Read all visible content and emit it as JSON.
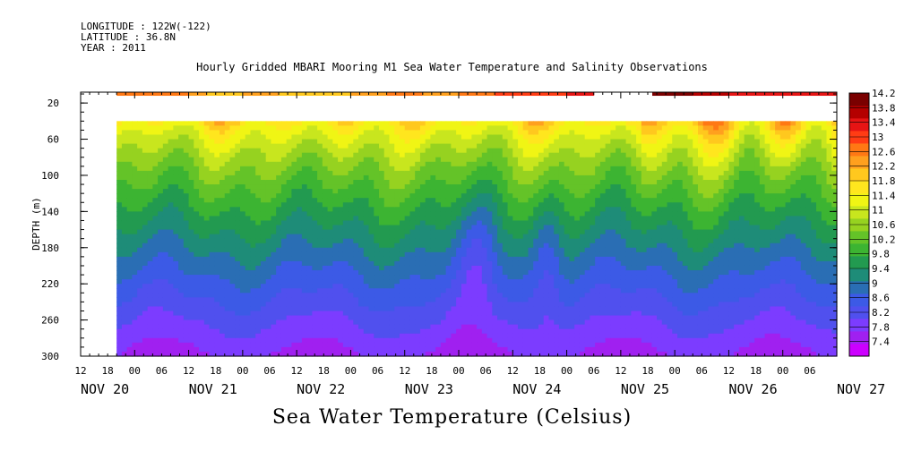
{
  "header": {
    "longitude_line": "LONGITUDE : 122W(-122)",
    "latitude_line": "LATITUDE : 36.8N",
    "year_line": "YEAR : 2011"
  },
  "chart_data": {
    "type": "heatmap",
    "title": "Hourly Gridded MBARI Mooring M1 Sea Water Temperature and Salinity Observations",
    "xlabel": "Sea Water Temperature (Celsius)",
    "ylabel": "DEPTH (m)",
    "x_hour_ticks": [
      "12",
      "18",
      "00",
      "06",
      "12",
      "18",
      "00",
      "06",
      "12",
      "18",
      "00",
      "06",
      "12",
      "18",
      "00",
      "06",
      "12",
      "18",
      "00",
      "06",
      "12",
      "18",
      "00",
      "06",
      "12",
      "18",
      "00",
      "06"
    ],
    "x_day_labels": [
      "NOV 20",
      "NOV 21",
      "NOV 22",
      "NOV 23",
      "NOV 24",
      "NOV 25",
      "NOV 26",
      "NOV 27"
    ],
    "xlim_hours": [
      0,
      84
    ],
    "y_ticks": [
      20,
      60,
      100,
      140,
      180,
      220,
      260,
      300
    ],
    "ylim": [
      8,
      300
    ],
    "y_reversed": true,
    "colorbar_labels": [
      "14.2",
      "13.8",
      "13.4",
      "13",
      "12.6",
      "12.2",
      "11.8",
      "11.4",
      "11",
      "10.6",
      "10.2",
      "9.8",
      "9.4",
      "9",
      "8.6",
      "8.2",
      "7.8",
      "7.4"
    ],
    "colorbar_min": 7.4,
    "colorbar_max": 14.4,
    "colors": [
      "#cc00ff",
      "#a020f0",
      "#7c3cff",
      "#5050ee",
      "#3c5ae6",
      "#2a6eb4",
      "#1e8c78",
      "#229a50",
      "#3cb432",
      "#64c328",
      "#96d220",
      "#c8e61e",
      "#f0f514",
      "#ffe61e",
      "#ffc81e",
      "#ffa01e",
      "#ff7814",
      "#ff3c14",
      "#e61414",
      "#b40000",
      "#7a0000"
    ],
    "surface_layer": {
      "depth": 10,
      "gap_hours": [
        57,
        63.5
      ],
      "start_hour": 4,
      "values": [
        {
          "hour": 4,
          "value": 12.8
        },
        {
          "hour": 8,
          "value": 12.9
        },
        {
          "hour": 12,
          "value": 12.7
        },
        {
          "hour": 14,
          "value": 12.3
        },
        {
          "hour": 18,
          "value": 12.7
        },
        {
          "hour": 22,
          "value": 12.1
        },
        {
          "hour": 26,
          "value": 12.3
        },
        {
          "hour": 30,
          "value": 12.6
        },
        {
          "hour": 34,
          "value": 12.9
        },
        {
          "hour": 38,
          "value": 12.7
        },
        {
          "hour": 42,
          "value": 12.8
        },
        {
          "hour": 46,
          "value": 13.2
        },
        {
          "hour": 50,
          "value": 13.3
        },
        {
          "hour": 54,
          "value": 13.5
        },
        {
          "hour": 57,
          "value": 13.4
        },
        {
          "hour": 63.5,
          "value": 14.2
        },
        {
          "hour": 68,
          "value": 13.9
        },
        {
          "hour": 72,
          "value": 13.7
        },
        {
          "hour": 76,
          "value": 13.6
        },
        {
          "hour": 80,
          "value": 13.6
        },
        {
          "hour": 84,
          "value": 13.5
        }
      ]
    },
    "profile_top_depth": 40,
    "profile_bottom_depth": 300
  }
}
